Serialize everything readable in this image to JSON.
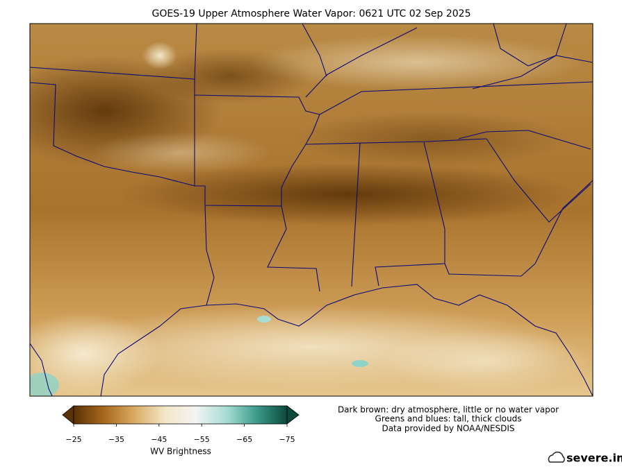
{
  "title": "GOES-19 Upper Atmosphere Water Vapor: 0621 UTC 02 Sep 2025",
  "colorbar": {
    "label": "WV Brightness",
    "range": [
      -25,
      -75
    ],
    "ticks": [
      {
        "value": -25,
        "label": "−25"
      },
      {
        "value": -35,
        "label": "−35"
      },
      {
        "value": -45,
        "label": "−45"
      },
      {
        "value": -55,
        "label": "−55"
      },
      {
        "value": -65,
        "label": "−65"
      },
      {
        "value": -75,
        "label": "−75"
      }
    ],
    "colors": [
      "#5a3206",
      "#a8681e",
      "#d9ab62",
      "#f3e6c8",
      "#f4f4f2",
      "#a8ddd4",
      "#3d9b8c",
      "#0b4a3c"
    ]
  },
  "notes": [
    "Dark brown: dry atmosphere, little or no water vapor",
    "Greens and blues: tall, thick clouds",
    "Data provided by NOAA/NESDIS"
  ],
  "brand": "severe.im"
}
